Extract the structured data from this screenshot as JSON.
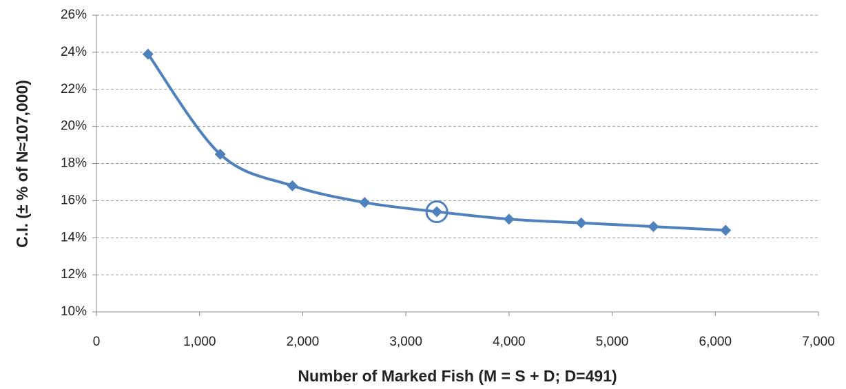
{
  "chart_data": {
    "type": "line",
    "x_label": "Number of Marked Fish (M = S + D; D=491)",
    "y_label": "C.I. (± % of N≈107,000)",
    "series": [
      {
        "name": "C.I.",
        "color": "#4f81bd",
        "x": [
          500,
          1200,
          1900,
          2600,
          3300,
          4000,
          4700,
          5400,
          6100
        ],
        "values": [
          23.9,
          18.5,
          16.8,
          15.9,
          15.4,
          15.0,
          14.8,
          14.6,
          14.4
        ]
      }
    ],
    "highlight_point": 4,
    "smooth": true,
    "marker": "diamond",
    "xlim": [
      0,
      7000
    ],
    "xticks": [
      0,
      {
        "value": 1000,
        "label": "1,000"
      },
      {
        "value": 2000,
        "label": "2,000"
      },
      {
        "value": 3000,
        "label": "3,000"
      },
      {
        "value": 4000,
        "label": "4,000"
      },
      {
        "value": 5000,
        "label": "5,000"
      },
      {
        "value": 6000,
        "label": "6,000"
      },
      {
        "value": 7000,
        "label": "7,000"
      }
    ],
    "ylim": [
      10,
      26
    ],
    "yticks": [
      {
        "value": 10,
        "label": "10%"
      },
      {
        "value": 12,
        "label": "12%"
      },
      {
        "value": 14,
        "label": "14%"
      },
      {
        "value": 16,
        "label": "16%"
      },
      {
        "value": 18,
        "label": "18%"
      },
      {
        "value": 20,
        "label": "20%"
      },
      {
        "value": 22,
        "label": "22%"
      },
      {
        "value": 24,
        "label": "24%"
      },
      {
        "value": 26,
        "label": "26%"
      }
    ],
    "grid": true
  }
}
